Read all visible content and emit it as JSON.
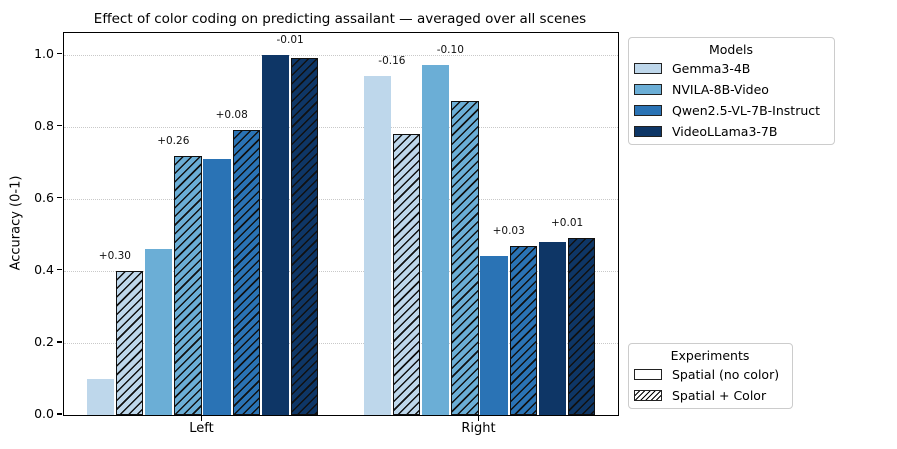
{
  "chart_data": {
    "type": "bar",
    "title": "Effect of color coding on predicting assailant — averaged over all scenes",
    "xlabel": "",
    "ylabel": "Accuracy (0-1)",
    "ylim": [
      0,
      1.06
    ],
    "yticks": [
      0.0,
      0.2,
      0.4,
      0.6,
      0.8,
      1.0
    ],
    "grid": "horizontal dotted",
    "categories": [
      "Left",
      "Right"
    ],
    "legend_models": {
      "title": "Models",
      "position": "outside upper right"
    },
    "legend_experiments": {
      "title": "Experiments",
      "position": "outside lower right",
      "items": [
        {
          "label": "Spatial (no color)",
          "hatched": false
        },
        {
          "label": "Spatial + Color",
          "hatched": true
        }
      ]
    },
    "hatch_pattern": "//",
    "series": [
      {
        "model": "Gemma3-4B",
        "color": "#bed7eb",
        "values": {
          "spatial_no_color": [
            0.1,
            0.94
          ],
          "spatial_plus_color": [
            0.4,
            0.78
          ]
        },
        "delta_labels": [
          "+0.30",
          "-0.16"
        ]
      },
      {
        "model": "NVILA-8B-Video",
        "color": "#6baed6",
        "values": {
          "spatial_no_color": [
            0.46,
            0.97
          ],
          "spatial_plus_color": [
            0.72,
            0.87
          ]
        },
        "delta_labels": [
          "+0.26",
          "-0.10"
        ]
      },
      {
        "model": "Qwen2.5-VL-7B-Instruct",
        "color": "#2a73b5",
        "values": {
          "spatial_no_color": [
            0.71,
            0.44
          ],
          "spatial_plus_color": [
            0.79,
            0.47
          ]
        },
        "delta_labels": [
          "+0.08",
          "+0.03"
        ]
      },
      {
        "model": "VideoLLama3-7B",
        "color": "#0e3666",
        "values": {
          "spatial_no_color": [
            1.0,
            0.48
          ],
          "spatial_plus_color": [
            0.99,
            0.49
          ]
        },
        "delta_labels": [
          "-0.01",
          "+0.01"
        ]
      }
    ]
  }
}
